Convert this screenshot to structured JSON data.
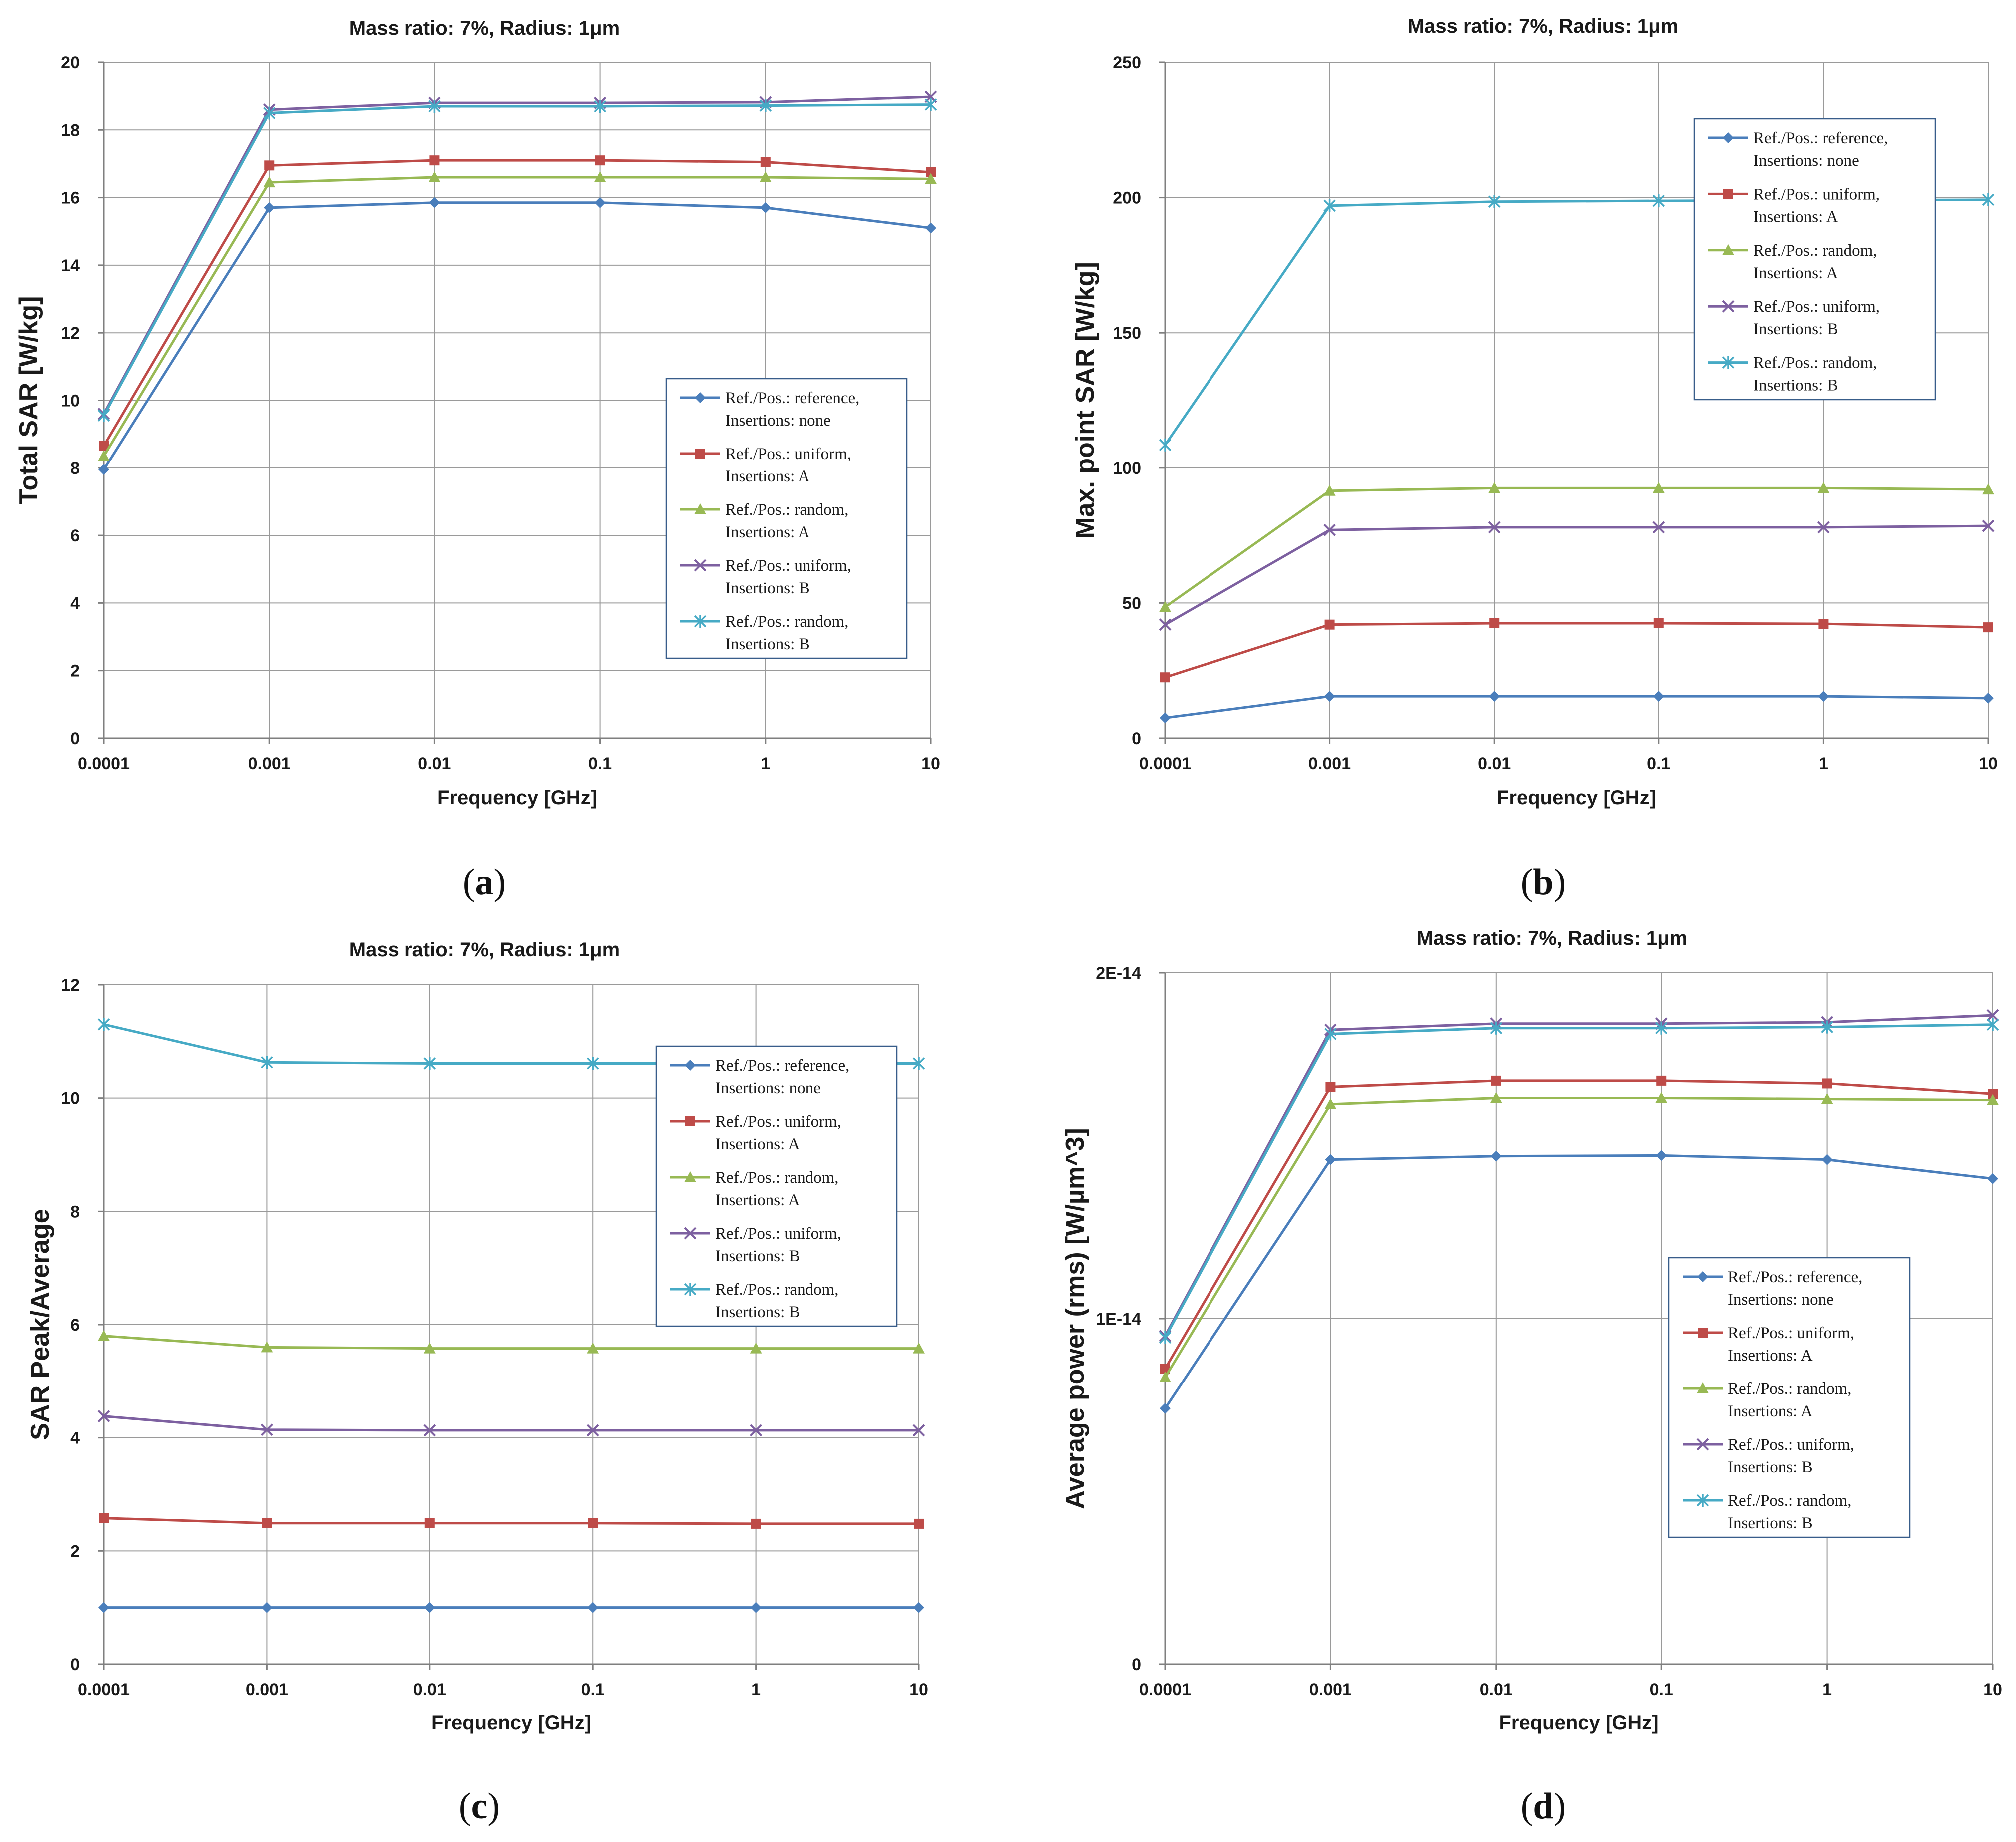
{
  "figure": {
    "captions": [
      "a",
      "b",
      "c",
      "d"
    ]
  },
  "colors": {
    "reference": "#4A7EBB",
    "uniform_A": "#BE4B48",
    "random_A": "#98B954",
    "uniform_B": "#7D60A0",
    "random_B": "#46AAC5",
    "grid": "#9a9a9a",
    "axis": "#7f7f7f"
  },
  "chart_data": [
    {
      "id": "a",
      "type": "line",
      "title": "Mass ratio: 7%, Radius: 1μm",
      "xlabel": "Frequency [GHz]",
      "ylabel": "Total SAR [W/kg]",
      "x_categories": [
        "0.0001",
        "0.001",
        "0.01",
        "0.1",
        "1",
        "10"
      ],
      "ylim": [
        0,
        20
      ],
      "y_ticks": [
        0,
        2,
        4,
        6,
        8,
        10,
        12,
        14,
        16,
        18,
        20
      ],
      "y_tick_labels": [
        "0",
        "2",
        "4",
        "6",
        "8",
        "10",
        "12",
        "14",
        "16",
        "18",
        "20"
      ],
      "grid": true,
      "legend_position": "center-right",
      "series": [
        {
          "name_line1": "Ref./Pos.: reference,",
          "name_line2": "Insertions: none",
          "color_key": "reference",
          "marker": "diamond",
          "values": [
            7.95,
            15.7,
            15.85,
            15.85,
            15.7,
            15.1
          ]
        },
        {
          "name_line1": "Ref./Pos.: uniform,",
          "name_line2": "Insertions: A",
          "color_key": "uniform_A",
          "marker": "square",
          "values": [
            8.65,
            16.95,
            17.1,
            17.1,
            17.05,
            16.75
          ]
        },
        {
          "name_line1": "Ref./Pos.: random,",
          "name_line2": "Insertions: A",
          "color_key": "random_A",
          "marker": "triangle",
          "values": [
            8.35,
            16.45,
            16.6,
            16.6,
            16.6,
            16.55
          ]
        },
        {
          "name_line1": "Ref./Pos.: uniform,",
          "name_line2": "Insertions: B",
          "color_key": "uniform_B",
          "marker": "x",
          "values": [
            9.6,
            18.6,
            18.8,
            18.8,
            18.82,
            18.98
          ]
        },
        {
          "name_line1": "Ref./Pos.: random,",
          "name_line2": "Insertions: B",
          "color_key": "random_B",
          "marker": "star",
          "values": [
            9.55,
            18.5,
            18.7,
            18.7,
            18.72,
            18.75
          ]
        }
      ]
    },
    {
      "id": "b",
      "type": "line",
      "title": "Mass ratio: 7%, Radius: 1μm",
      "xlabel": "Frequency [GHz]",
      "ylabel": "Max. point SAR [W/kg]",
      "x_categories": [
        "0.0001",
        "0.001",
        "0.01",
        "0.1",
        "1",
        "10"
      ],
      "ylim": [
        0,
        250
      ],
      "y_ticks": [
        0,
        50,
        100,
        150,
        200,
        250
      ],
      "y_tick_labels": [
        "0",
        "50",
        "100",
        "150",
        "200",
        "250"
      ],
      "grid": true,
      "legend_position": "top-right",
      "series": [
        {
          "name_line1": "Ref./Pos.: reference,",
          "name_line2": "Insertions: none",
          "color_key": "reference",
          "marker": "diamond",
          "values": [
            7.5,
            15.5,
            15.5,
            15.5,
            15.5,
            14.8
          ]
        },
        {
          "name_line1": "Ref./Pos.: uniform,",
          "name_line2": "Insertions: A",
          "color_key": "uniform_A",
          "marker": "square",
          "values": [
            22.5,
            42,
            42.5,
            42.5,
            42.3,
            41
          ]
        },
        {
          "name_line1": "Ref./Pos.: random,",
          "name_line2": "Insertions: A",
          "color_key": "random_A",
          "marker": "triangle",
          "values": [
            48.5,
            91.5,
            92.5,
            92.5,
            92.5,
            92
          ]
        },
        {
          "name_line1": "Ref./Pos.: uniform,",
          "name_line2": "Insertions: B",
          "color_key": "uniform_B",
          "marker": "x",
          "values": [
            42,
            77,
            78,
            78,
            78,
            78.5
          ]
        },
        {
          "name_line1": "Ref./Pos.: random,",
          "name_line2": "Insertions: B",
          "color_key": "random_B",
          "marker": "star",
          "values": [
            108.5,
            197,
            198.5,
            198.8,
            199,
            199.2
          ]
        }
      ]
    },
    {
      "id": "c",
      "type": "line",
      "title": "Mass ratio: 7%, Radius: 1μm",
      "xlabel": "Frequency [GHz]",
      "ylabel": "SAR Peak/Average",
      "x_categories": [
        "0.0001",
        "0.001",
        "0.01",
        "0.1",
        "1",
        "10"
      ],
      "ylim": [
        0,
        12
      ],
      "y_ticks": [
        0,
        2,
        4,
        6,
        8,
        10,
        12
      ],
      "y_tick_labels": [
        "0",
        "2",
        "4",
        "6",
        "8",
        "10",
        "12"
      ],
      "grid": true,
      "legend_position": "top-right",
      "series": [
        {
          "name_line1": "Ref./Pos.: reference,",
          "name_line2": "Insertions: none",
          "color_key": "reference",
          "marker": "diamond",
          "values": [
            1,
            1,
            1,
            1,
            1,
            1
          ]
        },
        {
          "name_line1": "Ref./Pos.: uniform,",
          "name_line2": "Insertions: A",
          "color_key": "uniform_A",
          "marker": "square",
          "values": [
            2.58,
            2.49,
            2.49,
            2.49,
            2.48,
            2.48
          ]
        },
        {
          "name_line1": "Ref./Pos.: random,",
          "name_line2": "Insertions: A",
          "color_key": "random_A",
          "marker": "triangle",
          "values": [
            5.8,
            5.6,
            5.58,
            5.58,
            5.58,
            5.58
          ]
        },
        {
          "name_line1": "Ref./Pos.: uniform,",
          "name_line2": "Insertions: B",
          "color_key": "uniform_B",
          "marker": "x",
          "values": [
            4.38,
            4.14,
            4.13,
            4.13,
            4.13,
            4.13
          ]
        },
        {
          "name_line1": "Ref./Pos.: random,",
          "name_line2": "Insertions: B",
          "color_key": "random_B",
          "marker": "star",
          "values": [
            11.3,
            10.63,
            10.61,
            10.61,
            10.61,
            10.61
          ]
        }
      ]
    },
    {
      "id": "d",
      "type": "line",
      "title": "Mass ratio: 7%, Radius: 1μm",
      "xlabel": "Frequency [GHz]",
      "ylabel": "Average power (rms) [W/µm^3]",
      "x_categories": [
        "0.0001",
        "0.001",
        "0.01",
        "0.1",
        "1",
        "10"
      ],
      "ylim": [
        0,
        2e-14
      ],
      "y_ticks": [
        0,
        1e-14,
        2e-14
      ],
      "y_tick_labels": [
        "0",
        "1E-14",
        "2E-14"
      ],
      "grid": true,
      "legend_position": "center-right",
      "series": [
        {
          "name_line1": "Ref./Pos.: reference,",
          "name_line2": "Insertions: none",
          "color_key": "reference",
          "marker": "diamond",
          "values": [
            7.4e-15,
            1.46e-14,
            1.47e-14,
            1.472e-14,
            1.46e-14,
            1.405e-14
          ]
        },
        {
          "name_line1": "Ref./Pos.: uniform,",
          "name_line2": "Insertions: A",
          "color_key": "uniform_A",
          "marker": "square",
          "values": [
            8.55e-15,
            1.67e-14,
            1.688e-14,
            1.688e-14,
            1.68e-14,
            1.65e-14
          ]
        },
        {
          "name_line1": "Ref./Pos.: random,",
          "name_line2": "Insertions: A",
          "color_key": "random_A",
          "marker": "triangle",
          "values": [
            8.3e-15,
            1.62e-14,
            1.638e-14,
            1.638e-14,
            1.635e-14,
            1.632e-14
          ]
        },
        {
          "name_line1": "Ref./Pos.: uniform,",
          "name_line2": "Insertions: B",
          "color_key": "uniform_B",
          "marker": "x",
          "values": [
            9.5e-15,
            1.835e-14,
            1.853e-14,
            1.853e-14,
            1.857e-14,
            1.877e-14
          ]
        },
        {
          "name_line1": "Ref./Pos.: random,",
          "name_line2": "Insertions: B",
          "color_key": "random_B",
          "marker": "star",
          "values": [
            9.45e-15,
            1.823e-14,
            1.84e-14,
            1.84e-14,
            1.843e-14,
            1.85e-14
          ]
        }
      ]
    }
  ]
}
